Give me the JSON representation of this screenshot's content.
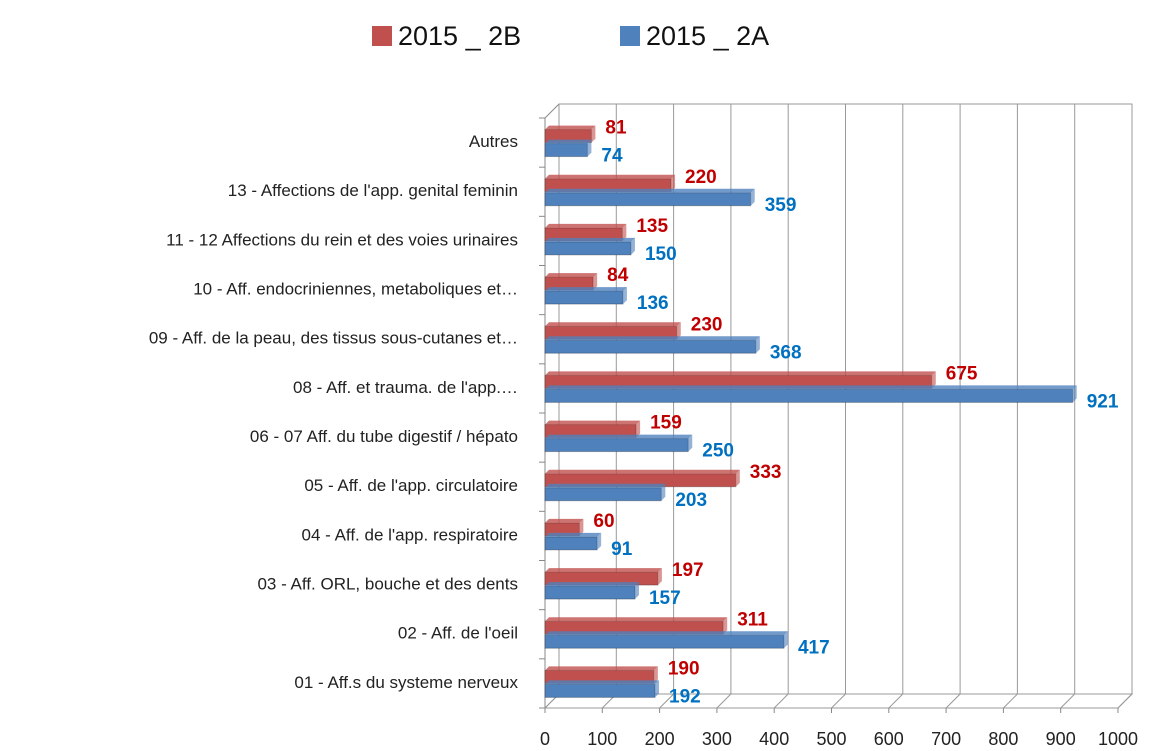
{
  "chart_data": {
    "type": "bar",
    "orientation": "horizontal",
    "categories": [
      "Autres",
      "13 - Affections de l'app. genital feminin",
      "11 - 12 Affections du rein et des voies urinaires",
      "10 - Aff. endocriniennes, metaboliques et…",
      "09 - Aff. de la peau, des tissus sous-cutanes et…",
      "08 - Aff. et trauma. de l'app.…",
      "06 - 07 Aff. du tube digestif / hépato",
      "05 - Aff. de l'app. circulatoire",
      "04 - Aff. de l'app. respiratoire",
      "03 - Aff. ORL, bouche et des dents",
      "02 - Aff. de l'oeil",
      "01 - Aff.s du systeme nerveux"
    ],
    "series": [
      {
        "name": "2015 _ 2B",
        "color": "#c0504d",
        "label_color": "#c00000",
        "values": [
          81,
          220,
          135,
          84,
          230,
          675,
          159,
          333,
          60,
          197,
          311,
          190
        ]
      },
      {
        "name": "2015 _ 2A",
        "color": "#4f81bd",
        "label_color": "#0070c0",
        "values": [
          74,
          359,
          150,
          136,
          368,
          921,
          250,
          203,
          91,
          157,
          417,
          192
        ]
      }
    ],
    "xlim": [
      0,
      1000
    ],
    "xticks": [
      0,
      100,
      200,
      300,
      400,
      500,
      600,
      700,
      800,
      900,
      1000
    ],
    "grid": true,
    "legend": "top"
  }
}
